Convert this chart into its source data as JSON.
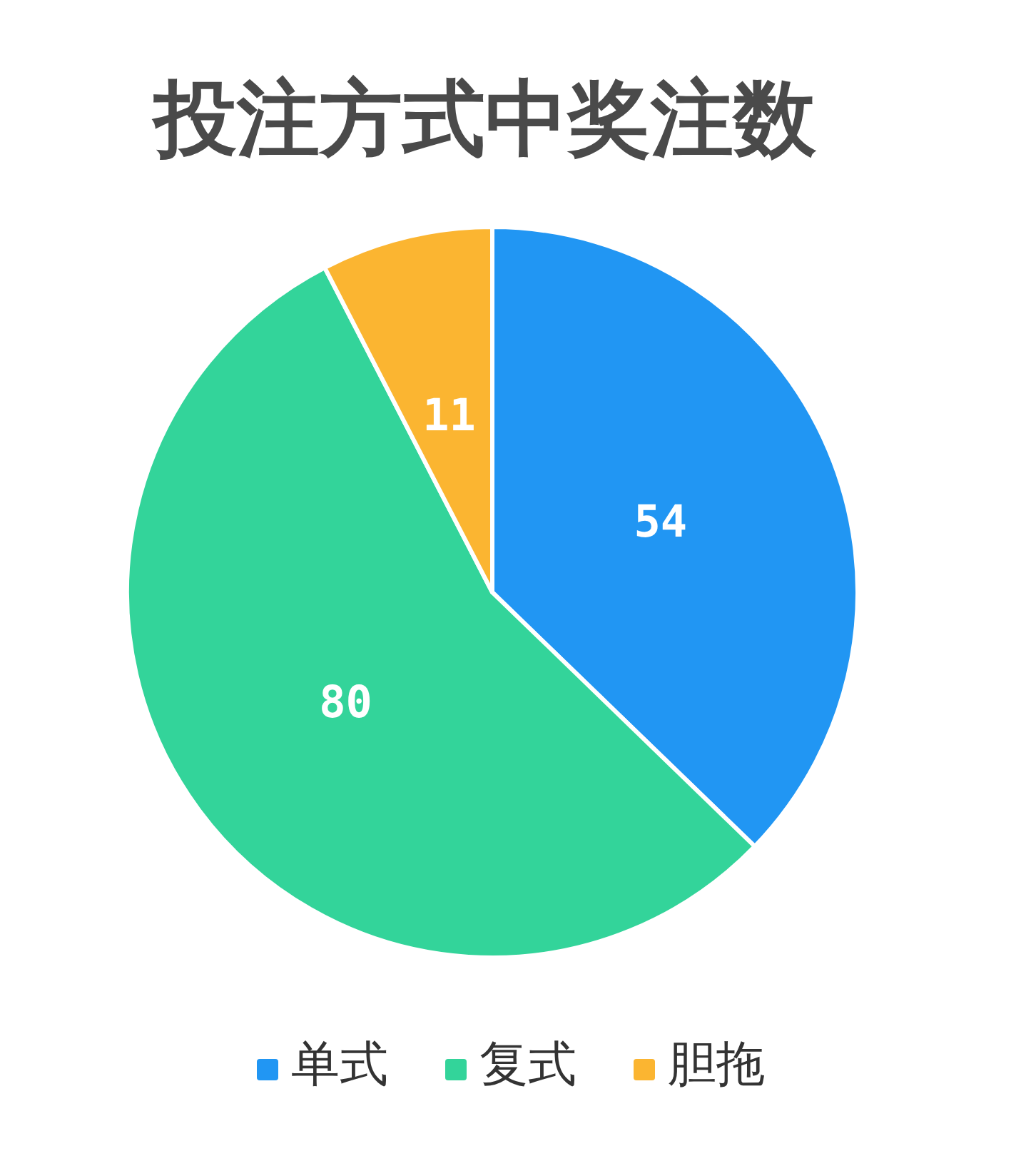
{
  "chart_data": {
    "type": "pie",
    "title": "投注方式中奖注数",
    "categories": [
      "单式",
      "复式",
      "胆拖"
    ],
    "values": [
      54,
      80,
      11
    ],
    "colors": [
      "#2196f3",
      "#33d49a",
      "#fbb531"
    ],
    "data_labels": true,
    "legend": "bottom"
  }
}
